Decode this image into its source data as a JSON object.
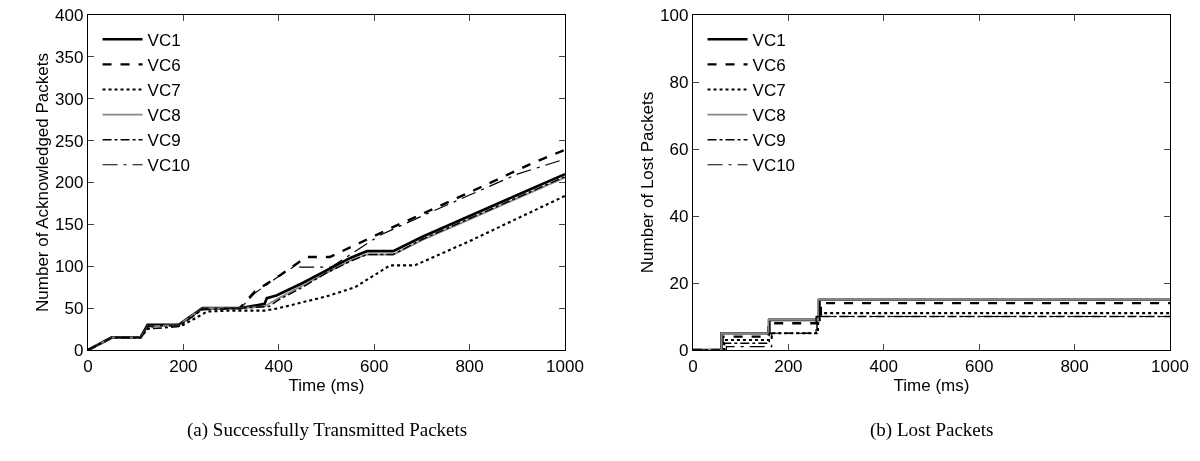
{
  "chart_data": [
    {
      "type": "line",
      "title": "(a) Successfully Transmitted Packets",
      "xlabel": "Time (ms)",
      "ylabel": "Number of Acknowledged Packets",
      "xlim": [
        0,
        1000
      ],
      "xticks": [
        0,
        200,
        400,
        600,
        800,
        1000
      ],
      "ylim": [
        0,
        400
      ],
      "yticks": [
        0,
        50,
        100,
        150,
        200,
        250,
        300,
        350,
        400
      ],
      "grid": false,
      "legend": "top left",
      "marker": "none",
      "series": [
        {
          "name": "VC1",
          "color": "#000000",
          "line_style": "solid",
          "x": [
            0,
            50,
            110,
            125,
            190,
            240,
            320,
            370,
            375,
            395,
            450,
            500,
            550,
            585,
            640,
            700,
            800,
            900,
            1000
          ],
          "values": [
            0,
            15,
            15,
            30,
            30,
            50,
            50,
            55,
            62,
            65,
            80,
            95,
            110,
            118,
            118,
            135,
            160,
            185,
            210
          ]
        },
        {
          "name": "VC6",
          "color": "#000000",
          "line_style": "dashed",
          "x": [
            0,
            50,
            110,
            125,
            190,
            240,
            318,
            350,
            402,
            458,
            507,
            633,
            822,
            935,
            1000
          ],
          "values": [
            0,
            15,
            15,
            28,
            30,
            50,
            50,
            70,
            89,
            111,
            111,
            145,
            194,
            224,
            239
          ]
        },
        {
          "name": "VC7",
          "color": "#000000",
          "line_style": "dotted",
          "x": [
            0,
            50,
            110,
            130,
            200,
            250,
            300,
            370,
            400,
            500,
            560,
            633,
            685,
            800,
            900,
            1000
          ],
          "values": [
            0,
            15,
            15,
            28,
            30,
            46,
            47,
            47,
            50,
            64,
            75,
            101,
            101,
            130,
            157,
            184
          ]
        },
        {
          "name": "VC8",
          "color": "#888888",
          "line_style": "solid",
          "x": [
            0,
            50,
            110,
            125,
            190,
            240,
            320,
            370,
            400,
            450,
            500,
            550,
            585,
            640,
            700,
            800,
            900,
            1000
          ],
          "values": [
            0,
            15,
            15,
            28,
            30,
            50,
            50,
            52,
            62,
            77,
            92,
            107,
            114,
            114,
            131,
            156,
            181,
            206
          ]
        },
        {
          "name": "VC9",
          "color": "#000000",
          "line_style": "dashdot",
          "x": [
            0,
            50,
            110,
            125,
            190,
            240,
            320,
            380,
            400,
            450,
            500,
            550,
            585,
            640,
            700,
            800,
            900,
            1000
          ],
          "values": [
            0,
            15,
            15,
            25,
            28,
            48,
            50,
            52,
            60,
            75,
            92,
            106,
            114,
            114,
            132,
            157,
            182,
            207
          ]
        },
        {
          "name": "VC10",
          "color": "#000000",
          "line_style": "longdashdot",
          "x": [
            0,
            50,
            110,
            125,
            190,
            240,
            320,
            350,
            400,
            430,
            510,
            612,
            700,
            800,
            900,
            1000
          ],
          "values": [
            0,
            15,
            15,
            28,
            30,
            50,
            50,
            68,
            88,
            99,
            99,
            137,
            160,
            185,
            210,
            228
          ]
        }
      ]
    },
    {
      "type": "step",
      "title": "(b) Lost Packets",
      "xlabel": "Time (ms)",
      "ylabel": "Number of Lost Packets",
      "xlim": [
        0,
        1000
      ],
      "xticks": [
        0,
        200,
        400,
        600,
        800,
        1000
      ],
      "ylim": [
        0,
        100
      ],
      "yticks": [
        0,
        20,
        40,
        60,
        80,
        100
      ],
      "grid": false,
      "legend": "top left",
      "marker": "none",
      "series": [
        {
          "name": "VC1",
          "color": "#000000",
          "line_style": "solid",
          "x": [
            0,
            60,
            160,
            265,
            1000
          ],
          "values": [
            0,
            5,
            9,
            15,
            15
          ]
        },
        {
          "name": "VC6",
          "color": "#000000",
          "line_style": "dashed",
          "x": [
            0,
            62,
            158,
            268,
            1000
          ],
          "values": [
            0,
            4,
            8,
            14,
            14
          ]
        },
        {
          "name": "VC7",
          "color": "#000000",
          "line_style": "dotted",
          "x": [
            0,
            65,
            165,
            262,
            1000
          ],
          "values": [
            0,
            3,
            5,
            11,
            11
          ]
        },
        {
          "name": "VC8",
          "color": "#888888",
          "line_style": "solid",
          "x": [
            0,
            60,
            158,
            262,
            1000
          ],
          "values": [
            0,
            5,
            9,
            15,
            15
          ]
        },
        {
          "name": "VC9",
          "color": "#000000",
          "line_style": "dashdot",
          "x": [
            0,
            66,
            160,
            260,
            1000
          ],
          "values": [
            0,
            2,
            5,
            10,
            10
          ]
        },
        {
          "name": "VC10",
          "color": "#000000",
          "line_style": "longdashdot",
          "x": [
            0,
            70,
            165,
            258,
            1000
          ],
          "values": [
            0,
            1,
            5,
            10,
            10
          ]
        }
      ]
    }
  ]
}
